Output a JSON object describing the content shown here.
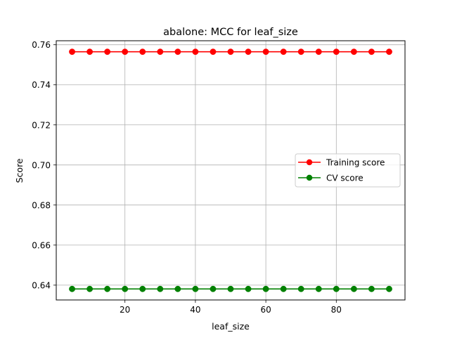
{
  "chart_data": {
    "type": "line",
    "title": "abalone: MCC for leaf_size",
    "xlabel": "leaf_size",
    "ylabel": "Score",
    "x": [
      5,
      10,
      15,
      20,
      25,
      30,
      35,
      40,
      45,
      50,
      55,
      60,
      65,
      70,
      75,
      80,
      85,
      90,
      95
    ],
    "xlim": [
      0.5,
      99.5
    ],
    "ylim": [
      0.6326,
      0.762
    ],
    "xticks": [
      20,
      40,
      60,
      80
    ],
    "yticks": [
      0.64,
      0.66,
      0.68,
      0.7,
      0.72,
      0.74,
      0.76
    ],
    "grid": true,
    "legend_position": "center-right",
    "series": [
      {
        "name": "Training score",
        "color": "#ff0000",
        "marker": "circle",
        "values": [
          0.7565,
          0.7565,
          0.7565,
          0.7565,
          0.7565,
          0.7565,
          0.7565,
          0.7565,
          0.7565,
          0.7565,
          0.7565,
          0.7565,
          0.7565,
          0.7565,
          0.7565,
          0.7565,
          0.7565,
          0.7565,
          0.7565
        ]
      },
      {
        "name": "CV score",
        "color": "#008000",
        "marker": "circle",
        "values": [
          0.6381,
          0.6381,
          0.6381,
          0.6381,
          0.6381,
          0.6381,
          0.6381,
          0.6381,
          0.6381,
          0.6381,
          0.6381,
          0.6381,
          0.6381,
          0.6381,
          0.6381,
          0.6381,
          0.6381,
          0.6381,
          0.6381
        ]
      }
    ]
  }
}
